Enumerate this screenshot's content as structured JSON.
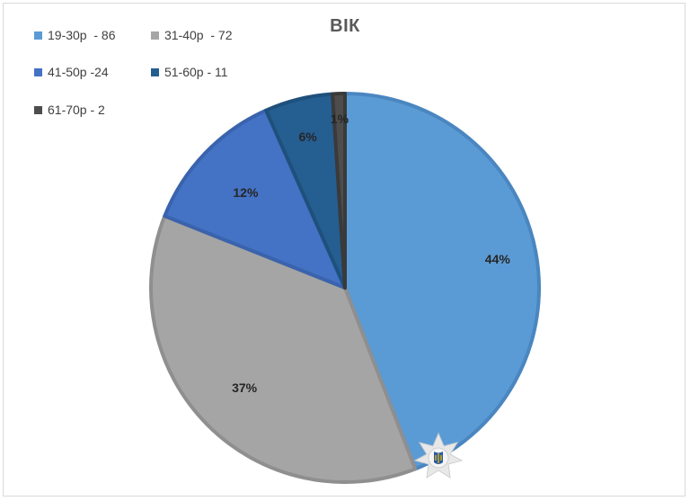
{
  "chart_data": {
    "type": "pie",
    "title": "ВІК",
    "legend_position": "top-left",
    "slices": [
      {
        "legend": "19-30р  - 86",
        "value": 86,
        "percent_label": "44%",
        "color": "#5b9bd5",
        "edge": "#4a86c0"
      },
      {
        "legend": "31-40р  - 72",
        "value": 72,
        "percent_label": "37%",
        "color": "#a5a5a5",
        "edge": "#8f8f8f"
      },
      {
        "legend": "41-50р -24",
        "value": 24,
        "percent_label": "12%",
        "color": "#4472c4",
        "edge": "#3a63ad"
      },
      {
        "legend": "51-60р - 11",
        "value": 11,
        "percent_label": "6%",
        "color": "#255e91",
        "edge": "#1f507c"
      },
      {
        "legend": "61-70р - 2",
        "value": 2,
        "percent_label": "1%",
        "color": "#4d4d4d",
        "edge": "#3a3a3a"
      }
    ]
  }
}
